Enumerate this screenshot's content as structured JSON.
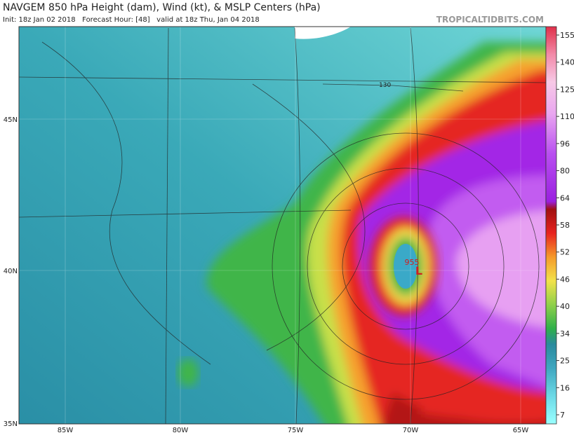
{
  "header": {
    "title": "NAVGEM 850 hPa Height (dam), Wind (kt), & MSLP Centers (hPa)",
    "subtitle": "Init: 18z Jan 02 2018   Forecast Hour: [48]   valid at 18z Thu, Jan 04 2018",
    "brand": "TROPICALTIDBITS.COM"
  },
  "colorbar": {
    "labels": [
      "155",
      "140",
      "125",
      "110",
      "96",
      "80",
      "64",
      "58",
      "52",
      "46",
      "40",
      "34",
      "25",
      "16",
      "7"
    ]
  },
  "map": {
    "lat_labels": [
      "45N",
      "40N",
      "35N"
    ],
    "lon_labels": [
      "85W",
      "80W",
      "75W",
      "70W",
      "65W"
    ],
    "contour_label": "130",
    "low": {
      "pressure": "955",
      "symbol": "L"
    }
  }
}
